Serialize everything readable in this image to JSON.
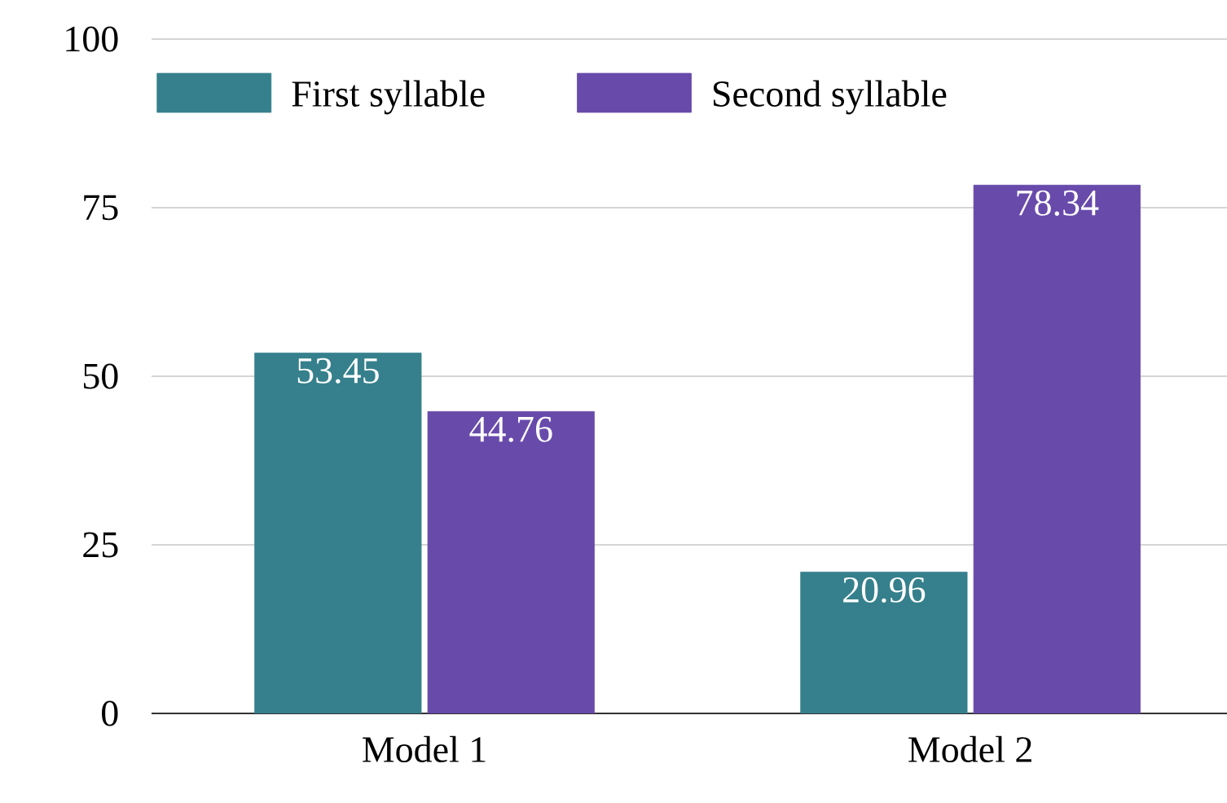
{
  "chart_data": {
    "type": "bar",
    "categories": [
      "Model 1",
      "Model 2"
    ],
    "series": [
      {
        "name": "First syllable",
        "color": "#35808c",
        "values": [
          53.45,
          20.96
        ]
      },
      {
        "name": "Second syllable",
        "color": "#684aab",
        "values": [
          44.76,
          78.34
        ]
      }
    ],
    "ylim": [
      0,
      100
    ],
    "yticks": [
      0,
      25,
      50,
      75,
      100
    ],
    "grid": "y",
    "legend": "top",
    "data_labels": true
  }
}
